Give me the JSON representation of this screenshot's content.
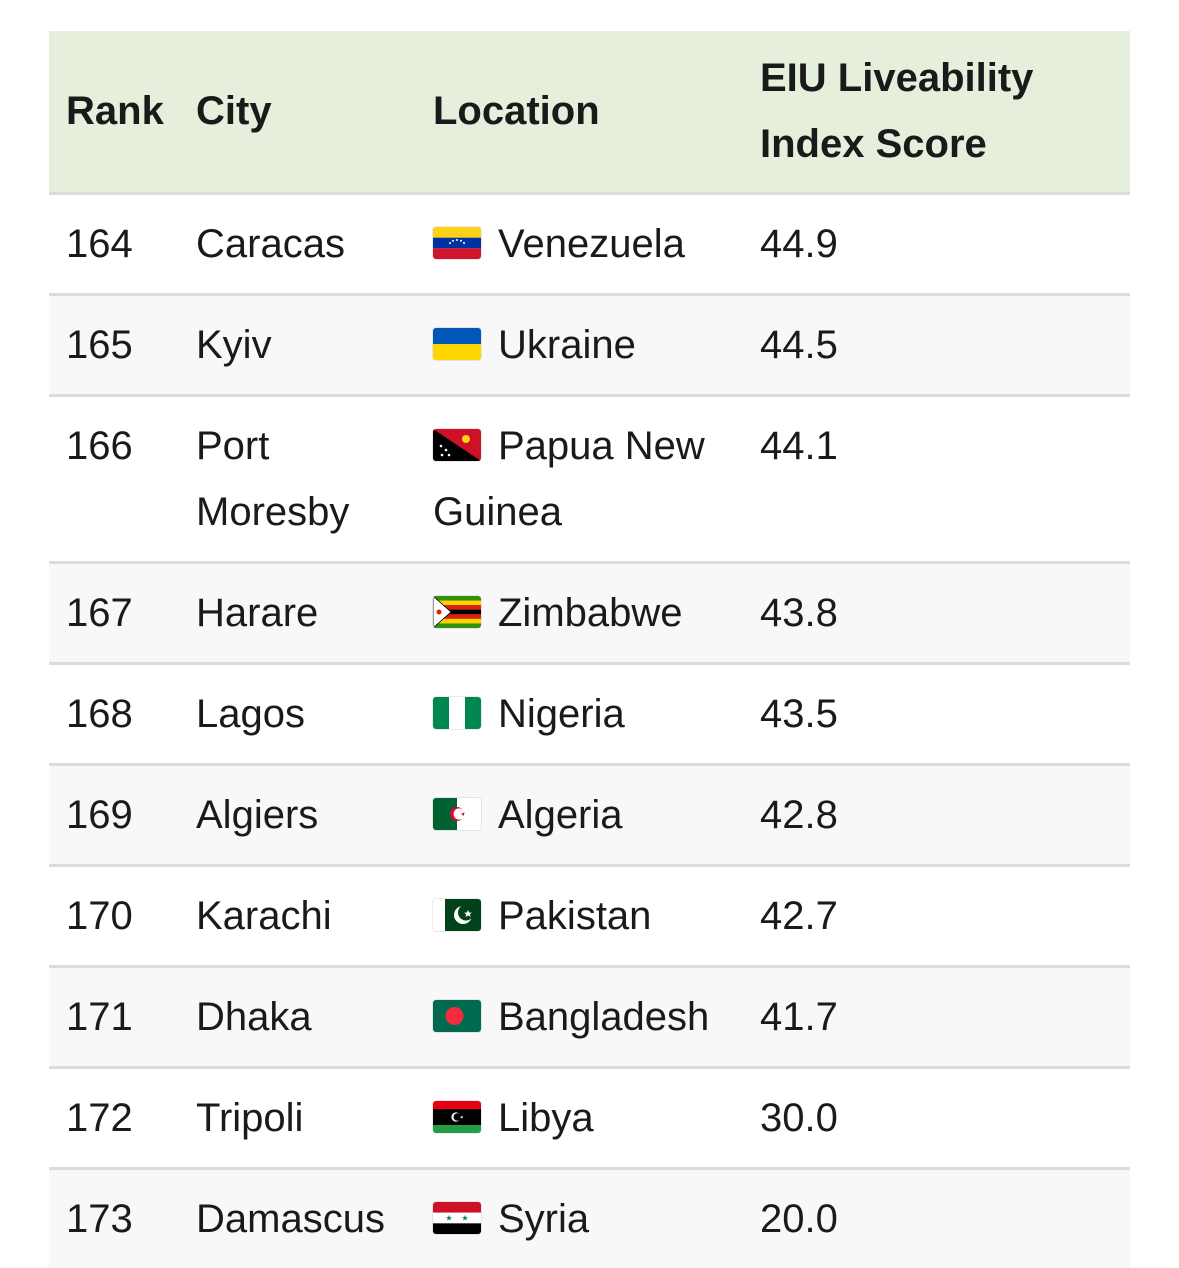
{
  "table": {
    "headers": {
      "rank": "Rank",
      "city": "City",
      "location": "Location",
      "score_line1": "EIU Liveability",
      "score_line2": "Index Score"
    },
    "rows": [
      {
        "rank": "164",
        "city": "Caracas",
        "country": "Venezuela",
        "flag": "venezuela-flag-icon",
        "score": "44.9"
      },
      {
        "rank": "165",
        "city": "Kyiv",
        "country": "Ukraine",
        "flag": "ukraine-flag-icon",
        "score": "44.5"
      },
      {
        "rank": "166",
        "city": "Port Moresby",
        "country": "Papua New Guinea",
        "flag": "papua-new-guinea-flag-icon",
        "score": "44.1"
      },
      {
        "rank": "167",
        "city": "Harare",
        "country": "Zimbabwe",
        "flag": "zimbabwe-flag-icon",
        "score": "43.8"
      },
      {
        "rank": "168",
        "city": "Lagos",
        "country": "Nigeria",
        "flag": "nigeria-flag-icon",
        "score": "43.5"
      },
      {
        "rank": "169",
        "city": "Algiers",
        "country": "Algeria",
        "flag": "algeria-flag-icon",
        "score": "42.8"
      },
      {
        "rank": "170",
        "city": "Karachi",
        "country": "Pakistan",
        "flag": "pakistan-flag-icon",
        "score": "42.7"
      },
      {
        "rank": "171",
        "city": "Dhaka",
        "country": "Bangladesh",
        "flag": "bangladesh-flag-icon",
        "score": "41.7"
      },
      {
        "rank": "172",
        "city": "Tripoli",
        "country": "Libya",
        "flag": "libya-flag-icon",
        "score": "30.0"
      },
      {
        "rank": "173",
        "city": "Damascus",
        "country": "Syria",
        "flag": "syria-flag-icon",
        "score": "20.0"
      }
    ]
  },
  "colors": {
    "header_bg": "#e5efdb",
    "alt_row_bg": "#f8f8f8",
    "divider": "#dcdcdc"
  }
}
